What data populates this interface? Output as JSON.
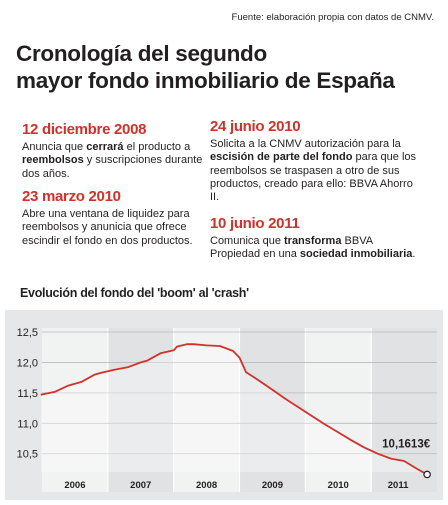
{
  "source": "Fuente: elaboración propia con datos de CNMV.",
  "title_line1": "Cronología del segundo",
  "title_line2": "mayor fondo inmobiliario de España",
  "events": [
    {
      "date": "12 diciembre 2008",
      "segments": [
        {
          "text": "Anuncia que ",
          "bold": false
        },
        {
          "text": "cerrará",
          "bold": true
        },
        {
          "text": " el producto a ",
          "bold": false
        },
        {
          "text": "reembolsos",
          "bold": true
        },
        {
          "text": " y suscripciones durante dos años.",
          "bold": false
        }
      ]
    },
    {
      "date": "23 marzo 2010",
      "segments": [
        {
          "text": "Abre una ventana de liquidez para reembolsos y anunicia que ofrece escindir el fondo en dos productos.",
          "bold": false
        }
      ]
    },
    {
      "date": "24 junio 2010",
      "segments": [
        {
          "text": "Solicita a la CNMV autorización para la ",
          "bold": false
        },
        {
          "text": "escisión de parte del fondo",
          "bold": true
        },
        {
          "text": " para que los reembolsos se traspasen a otro de sus productos, creado para ello: BBVA Ahorro II.",
          "bold": false
        }
      ]
    },
    {
      "date": "10 junio 2011",
      "segments": [
        {
          "text": "Comunica que ",
          "bold": false
        },
        {
          "text": "transforma",
          "bold": true
        },
        {
          "text": " BBVA Propiedad en una ",
          "bold": false
        },
        {
          "text": "sociedad inmobiliaria",
          "bold": true
        },
        {
          "text": ".",
          "bold": false
        }
      ]
    }
  ],
  "colors": {
    "accent": "#d0322a",
    "line": "#d0322a",
    "frame_bg": "#e6e7e8",
    "band_light": "#f1f2f2",
    "band_dark": "#e1e2e3",
    "text": "#231f20"
  },
  "chart_data": {
    "type": "line",
    "title": "Evolución del fondo del 'boom' al 'crash'",
    "xlabel": "",
    "ylabel": "",
    "ylim": [
      10.2,
      12.5
    ],
    "yticks": [
      "12,5",
      "12,0",
      "11,5",
      "11,0",
      "10,5"
    ],
    "ytick_values": [
      12.5,
      12.0,
      11.5,
      11.0,
      10.5
    ],
    "xlim": [
      2005.5,
      2011.5
    ],
    "xticks": [
      "2006",
      "2007",
      "2008",
      "2009",
      "2010",
      "2011"
    ],
    "xtick_values": [
      2006.0,
      2007.0,
      2008.0,
      2009.0,
      2010.0,
      2011.0
    ],
    "x": [
      2005.48,
      2005.7,
      2005.9,
      2006.1,
      2006.3,
      2006.4,
      2006.6,
      2006.8,
      2007.0,
      2007.1,
      2007.3,
      2007.5,
      2007.55,
      2007.7,
      2007.8,
      2008.0,
      2008.2,
      2008.4,
      2008.5,
      2008.6,
      2008.8,
      2009.0,
      2009.2,
      2009.4,
      2009.6,
      2009.8,
      2010.0,
      2010.2,
      2010.4,
      2010.6,
      2010.8,
      2011.0,
      2011.2,
      2011.35
    ],
    "series": [
      {
        "values": [
          11.47,
          11.52,
          11.62,
          11.68,
          11.8,
          11.83,
          11.88,
          11.92,
          12.0,
          12.03,
          12.15,
          12.2,
          12.26,
          12.3,
          12.3,
          12.28,
          12.27,
          12.19,
          12.08,
          11.84,
          11.7,
          11.55,
          11.4,
          11.26,
          11.12,
          10.98,
          10.85,
          10.72,
          10.6,
          10.5,
          10.42,
          10.38,
          10.25,
          10.16
        ]
      }
    ],
    "end_label": "10,1613€",
    "end_value": 10.1613,
    "grid": true,
    "legend": "none"
  }
}
